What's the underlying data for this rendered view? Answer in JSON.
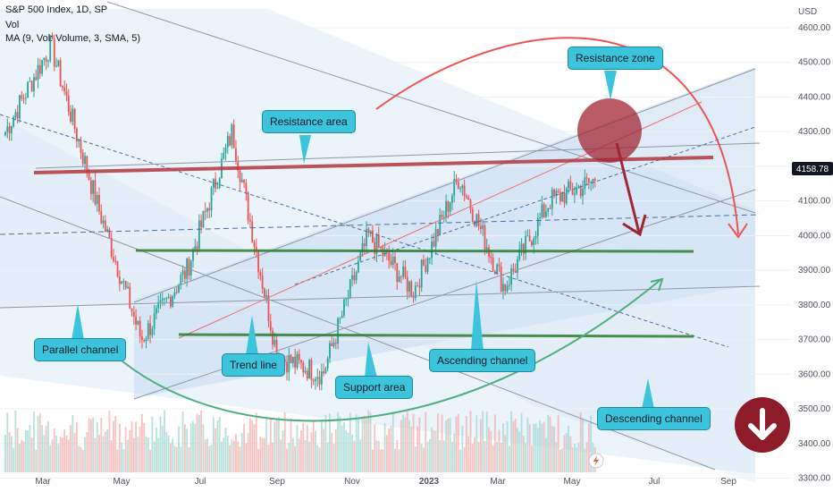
{
  "header": {
    "symbol": "S&P 500 Index, 1D, SP",
    "vol": "Vol",
    "ma": "MA (9, Vol: Volume, 3, SMA, 5)"
  },
  "currency": "USD",
  "last_price": "4158.78",
  "callouts": {
    "resistance_area": "Resistance area",
    "resistance_zone": "Resistance zone",
    "parallel_channel": "Parallel channel",
    "trend_line": "Trend line",
    "support_area": "Support area",
    "ascending_channel": "Ascending channel",
    "descending_channel": "Descending channel"
  },
  "colors": {
    "up": "#26a69a",
    "down": "#ef5350",
    "accent_cyan": "#3bc4dc",
    "resistance": "#b2393f",
    "support": "#2e7d32"
  },
  "chart_data": {
    "type": "candlestick",
    "title": "S&P 500 Index, 1D, SP",
    "ylabel": "USD",
    "ylim": [
      3260,
      4680
    ],
    "y_ticks": [
      3300,
      3400,
      3500,
      3600,
      3700,
      3800,
      3900,
      4000,
      4100,
      4200,
      4300,
      4400,
      4500,
      4600
    ],
    "x_ticks": [
      "Mar",
      "May",
      "Jul",
      "Sep",
      "Nov",
      "2023",
      "Mar",
      "May",
      "Jul",
      "Sep"
    ],
    "last_value": 4158.78,
    "path_points": [
      {
        "t": "Mar 2022",
        "v": 4300
      },
      {
        "t": "Apr 2022",
        "v": 4550
      },
      {
        "t": "May 2022",
        "v": 4100
      },
      {
        "t": "Jun 2022",
        "v": 3700
      },
      {
        "t": "Jul 2022",
        "v": 3900
      },
      {
        "t": "Aug 2022",
        "v": 4300
      },
      {
        "t": "Sep 2022",
        "v": 3650
      },
      {
        "t": "Oct 2022",
        "v": 3600
      },
      {
        "t": "Nov 2022",
        "v": 4000
      },
      {
        "t": "Dec 2022",
        "v": 3840
      },
      {
        "t": "Feb 2023",
        "v": 4170
      },
      {
        "t": "Mar 2023",
        "v": 3850
      },
      {
        "t": "Apr 2023",
        "v": 4100
      },
      {
        "t": "May 2023",
        "v": 4158.78
      }
    ],
    "levels": [
      {
        "name": "Resistance area",
        "value": 4160
      },
      {
        "name": "Support",
        "value": 3920
      },
      {
        "name": "Support area",
        "value": 3670
      }
    ]
  }
}
